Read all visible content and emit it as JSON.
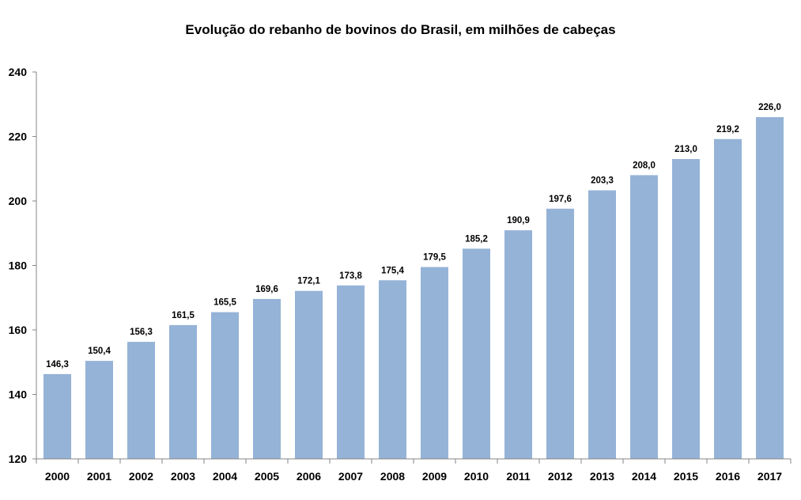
{
  "chart_data": {
    "type": "bar",
    "title": "Evolução do rebanho de bovinos do Brasil, em milhões de cabeças",
    "xlabel": "",
    "ylabel": "",
    "categories": [
      "2000",
      "2001",
      "2002",
      "2003",
      "2004",
      "2005",
      "2006",
      "2007",
      "2008",
      "2009",
      "2010",
      "2011",
      "2012",
      "2013",
      "2014",
      "2015",
      "2016",
      "2017"
    ],
    "values": [
      146.3,
      150.4,
      156.3,
      161.5,
      165.5,
      169.6,
      172.1,
      173.8,
      175.4,
      179.5,
      185.2,
      190.9,
      197.6,
      203.3,
      208.0,
      213.0,
      219.2,
      226.0
    ],
    "data_labels": [
      "146,3",
      "150,4",
      "156,3",
      "161,5",
      "165,5",
      "169,6",
      "172,1",
      "173,8",
      "175,4",
      "179,5",
      "185,2",
      "190,9",
      "197,6",
      "203,3",
      "208,0",
      "213,0",
      "219,2",
      "226,0"
    ],
    "ylim": [
      120,
      240
    ],
    "yticks": [
      "120",
      "140",
      "160",
      "180",
      "200",
      "220",
      "240"
    ],
    "grid": false,
    "legend": "none",
    "bar_color": "#95b3d7"
  }
}
